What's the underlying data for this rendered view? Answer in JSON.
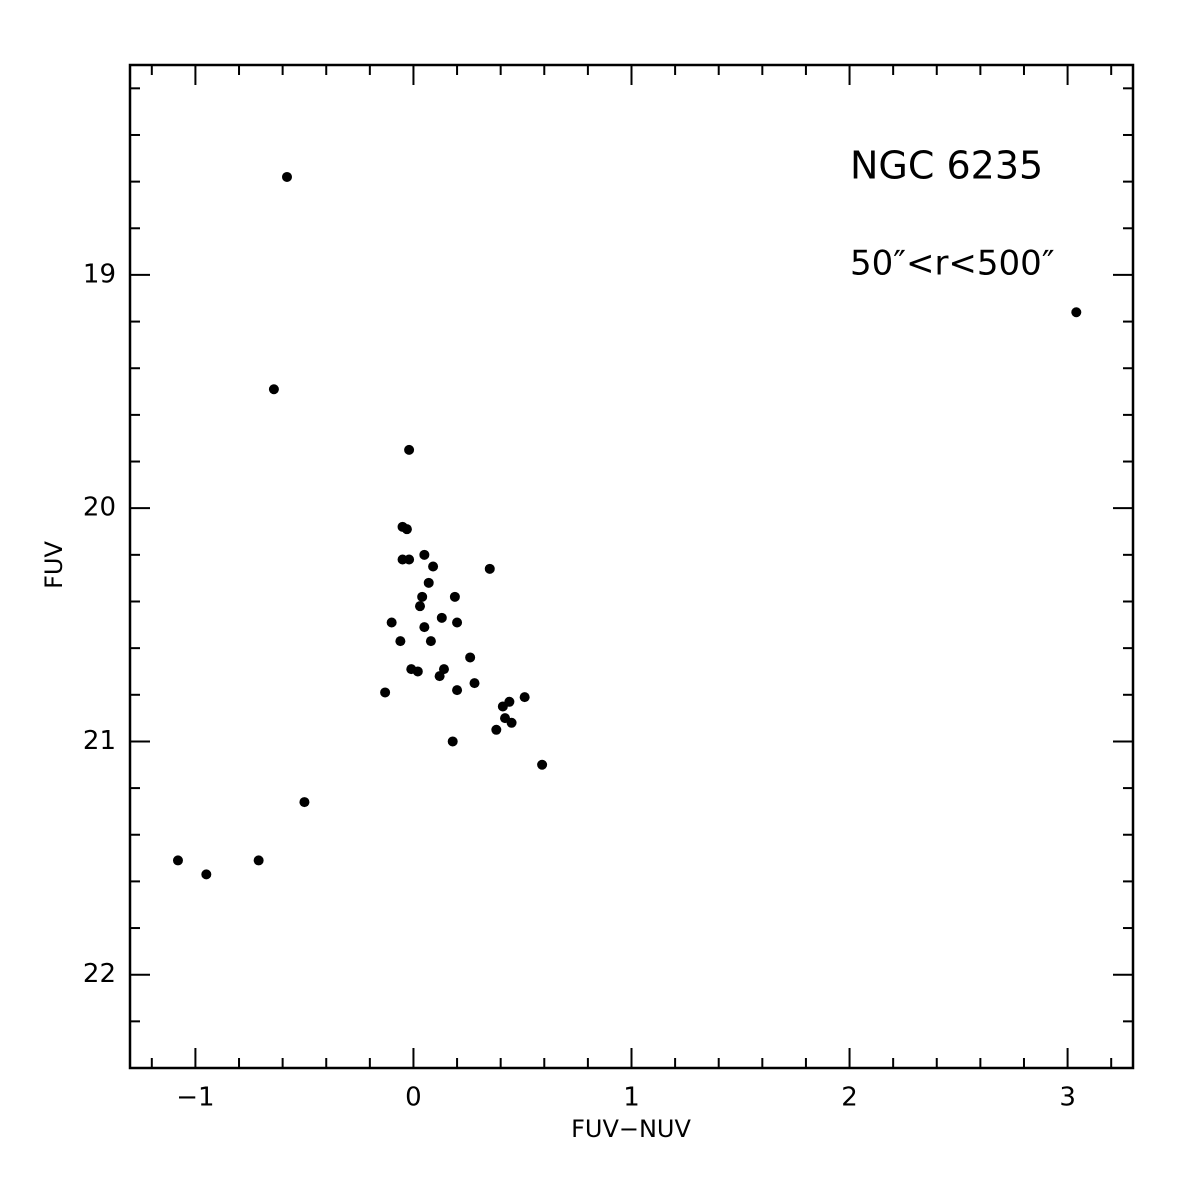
{
  "chart_data": {
    "type": "scatter",
    "title": "NGC 6235",
    "subtitle": "50″<r<500″",
    "x_label": "FUV−NUV",
    "y_label": "FUV",
    "xlim": [
      -1.3,
      3.3
    ],
    "ylim": [
      18.1,
      22.4
    ],
    "y_inverted": true,
    "color": "#000000",
    "xticks": [
      {
        "value": -1,
        "label": "−1"
      },
      0,
      1,
      2,
      3
    ],
    "yticks": [
      19,
      20,
      21,
      22
    ],
    "xminorticks": [
      -1.2,
      -0.8,
      -0.6,
      -0.4,
      -0.2,
      0.2,
      0.4,
      0.6,
      0.8,
      1.2,
      1.4,
      1.6,
      1.8,
      2.2,
      2.4,
      2.6,
      2.8,
      3.2
    ],
    "yminorticks": [
      18.2,
      18.4,
      18.6,
      18.8,
      19.2,
      19.4,
      19.6,
      19.8,
      20.2,
      20.4,
      20.6,
      20.8,
      21.2,
      21.4,
      21.6,
      21.8,
      22.2
    ],
    "x": [
      -0.58,
      3.04,
      -0.64,
      -0.02,
      -0.05,
      -0.03,
      -0.05,
      -0.02,
      0.05,
      0.09,
      0.35,
      0.07,
      0.04,
      0.19,
      0.03,
      0.13,
      -0.1,
      0.2,
      0.05,
      -0.06,
      0.08,
      0.26,
      -0.01,
      0.02,
      0.14,
      0.12,
      0.28,
      -0.13,
      0.2,
      0.51,
      0.44,
      0.41,
      0.42,
      0.45,
      0.38,
      0.18,
      0.59,
      -0.5,
      -0.71,
      -1.08,
      -0.95
    ],
    "y": [
      18.58,
      19.16,
      19.49,
      19.75,
      20.08,
      20.09,
      20.22,
      20.22,
      20.2,
      20.25,
      20.26,
      20.32,
      20.38,
      20.38,
      20.42,
      20.47,
      20.49,
      20.49,
      20.51,
      20.57,
      20.57,
      20.64,
      20.69,
      20.7,
      20.69,
      20.72,
      20.75,
      20.79,
      20.78,
      20.81,
      20.83,
      20.85,
      20.9,
      20.92,
      20.95,
      21.0,
      21.1,
      21.26,
      21.51,
      21.51,
      21.57
    ]
  }
}
